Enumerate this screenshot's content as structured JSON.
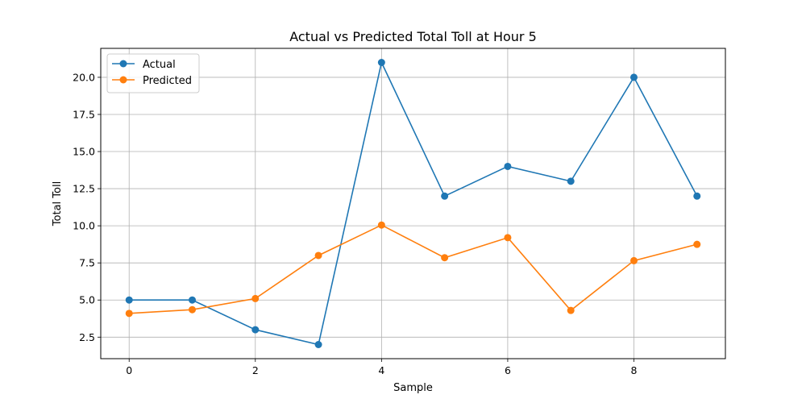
{
  "chart_data": {
    "type": "line",
    "title": "Actual vs Predicted Total Toll at Hour 5",
    "xlabel": "Sample",
    "ylabel": "Total Toll",
    "x": [
      0,
      1,
      2,
      3,
      4,
      5,
      6,
      7,
      8,
      9
    ],
    "xlim": [
      -0.45,
      9.45
    ],
    "ylim": [
      1.05,
      21.95
    ],
    "xticks": [
      0,
      2,
      4,
      6,
      8
    ],
    "yticks": [
      2.5,
      5.0,
      7.5,
      10.0,
      12.5,
      15.0,
      17.5,
      20.0
    ],
    "xtick_labels": [
      "0",
      "2",
      "4",
      "6",
      "8"
    ],
    "ytick_labels": [
      "2.5",
      "5.0",
      "7.5",
      "10.0",
      "12.5",
      "15.0",
      "17.5",
      "20.0"
    ],
    "grid": true,
    "legend_position": "top-left",
    "series": [
      {
        "name": "Actual",
        "color": "#1f77b4",
        "marker": "circle",
        "values": [
          5,
          5,
          3,
          2,
          21,
          12,
          14,
          13,
          20,
          12
        ]
      },
      {
        "name": "Predicted",
        "color": "#ff7f0e",
        "marker": "circle",
        "values": [
          4.1,
          4.35,
          5.1,
          8.0,
          10.05,
          7.85,
          9.2,
          4.3,
          7.65,
          8.75
        ]
      }
    ]
  }
}
